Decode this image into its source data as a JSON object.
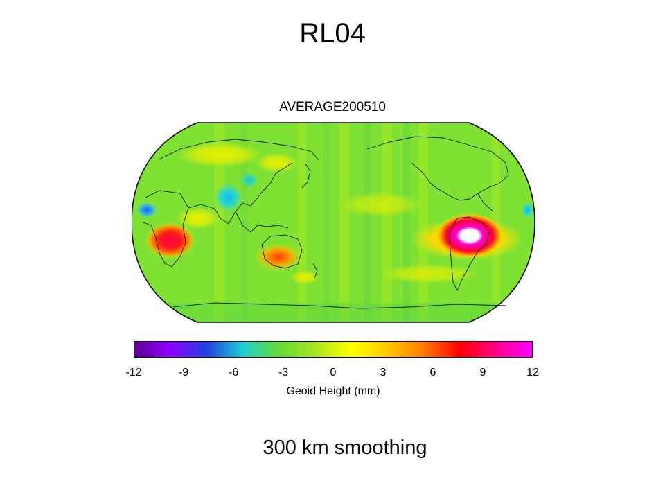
{
  "slide": {
    "title": "RL04",
    "caption": "300 km smoothing"
  },
  "map": {
    "title": "AVERAGE200510",
    "projection": "Robinson",
    "center_longitude": "Pacific-centred",
    "base_color": "#7fe233",
    "anomalies": [
      {
        "region": "Amazon Basin",
        "level": "max",
        "color": "#ff00d8"
      },
      {
        "region": "Central Africa",
        "level": "high",
        "color": "#ff1a1a"
      },
      {
        "region": "Northern Australia",
        "level": "moderate",
        "color": "#ff7a00"
      },
      {
        "region": "Himalaya / Bay of Bengal",
        "level": "low",
        "color": "#23c7e8"
      },
      {
        "region": "West Africa coast",
        "level": "low",
        "color": "#2f86f0"
      }
    ]
  },
  "colorbar": {
    "ticks": [
      "-12",
      "-9",
      "-6",
      "-3",
      "0",
      "3",
      "6",
      "9",
      "12"
    ],
    "label": "Geoid Height (mm)",
    "range": [
      -12,
      12
    ],
    "colors": [
      "#5b0096",
      "#8f00ff",
      "#2040e0",
      "#18d0d8",
      "#64dc36",
      "#a8e61e",
      "#ffff00",
      "#ffc800",
      "#ff7a00",
      "#ff0000",
      "#ff0088",
      "#ff00ff"
    ]
  }
}
